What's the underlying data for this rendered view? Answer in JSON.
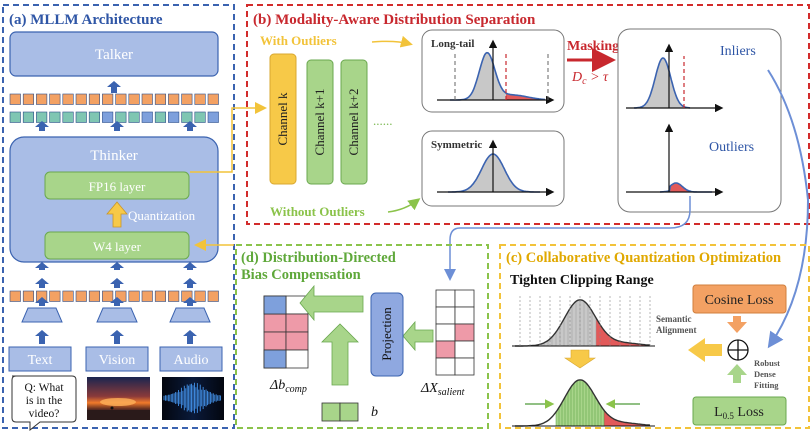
{
  "panel_a": {
    "title": "(a) MLLM Architecture",
    "talker": "Talker",
    "thinker": "Thinker",
    "fp16": "FP16 layer",
    "quant": "Quantization",
    "w4": "W4 layer",
    "inputs": [
      "Text",
      "Vision",
      "Audio"
    ],
    "question": [
      "Q: What",
      "is in the",
      "video?"
    ]
  },
  "panel_b": {
    "title": "(b) Modality-Aware Distribution Separation",
    "with_outliers": "With Outliers",
    "without_outliers": "Without Outliers",
    "channels": [
      "Channel k",
      "Channel k+1",
      "Channel k+2"
    ],
    "dots": "......",
    "long_tail": "Long-tail",
    "symmetric": "Symmetric",
    "masking": "Masking",
    "condition": "D",
    "condition_sub": "c",
    "condition_rest": " > τ",
    "inliers": "Inliers",
    "outliers": "Outliers"
  },
  "panel_c": {
    "title": "(c) Collaborative Quantization Optimization",
    "tighten": "Tighten Clipping Range",
    "cosine": "Cosine Loss",
    "semantic": [
      "Semantic",
      "Alignment"
    ],
    "robust": [
      "Robust",
      "Dense",
      "Fitting"
    ],
    "l_loss": "L",
    "l_sub": "0.5",
    "l_rest": " Loss"
  },
  "panel_d": {
    "title1": "(d) Distribution-Directed",
    "title2": "Bias Compensation",
    "projection": "Projection",
    "delta_b": "Δb",
    "delta_b_sub": "comp",
    "b": "b",
    "delta_x": "ΔX",
    "delta_x_sub": "salient"
  },
  "colors": {
    "blue_border": "#3b63b0",
    "red_border": "#d22b2b",
    "yellow_border": "#f2c33a",
    "green_border": "#8bc34a",
    "title_blue": "#2f56a6",
    "title_red": "#c8282e",
    "title_yellow": "#e0a800",
    "title_green": "#5fa83a",
    "box_blue": "#a9bde6",
    "box_green": "#a8d58a",
    "box_yellow": "#f7c948",
    "salmon": "#ee8e6e",
    "pink": "#ee9aa8",
    "orange_block": "#f3a163",
    "teal_block": "#7fc6b2"
  }
}
